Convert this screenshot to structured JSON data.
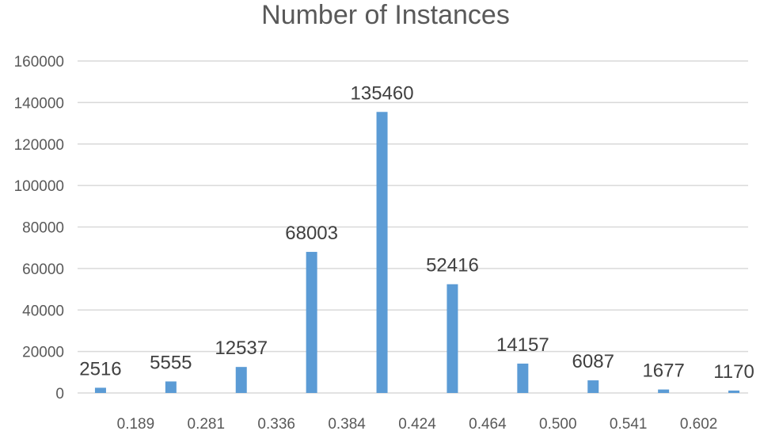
{
  "chart_data": {
    "type": "bar",
    "title": "Number of Instances",
    "xlabel": "",
    "ylabel": "",
    "ylim": [
      0,
      160000
    ],
    "yticks": [
      0,
      20000,
      40000,
      60000,
      80000,
      100000,
      120000,
      140000,
      160000
    ],
    "grid": true,
    "legend": "none",
    "bar_color": "#5b9bd5",
    "x_tick_labels": [
      "0.189",
      "0.281",
      "0.336",
      "0.384",
      "0.424",
      "0.464",
      "0.500",
      "0.541",
      "0.602"
    ],
    "values": [
      2516,
      5555,
      12537,
      68003,
      135460,
      52416,
      14157,
      6087,
      1677,
      1170
    ],
    "data_labels": [
      "2516",
      "5555",
      "12537",
      "68003",
      "135460",
      "52416",
      "14157",
      "6087",
      "1677",
      "1170"
    ]
  }
}
